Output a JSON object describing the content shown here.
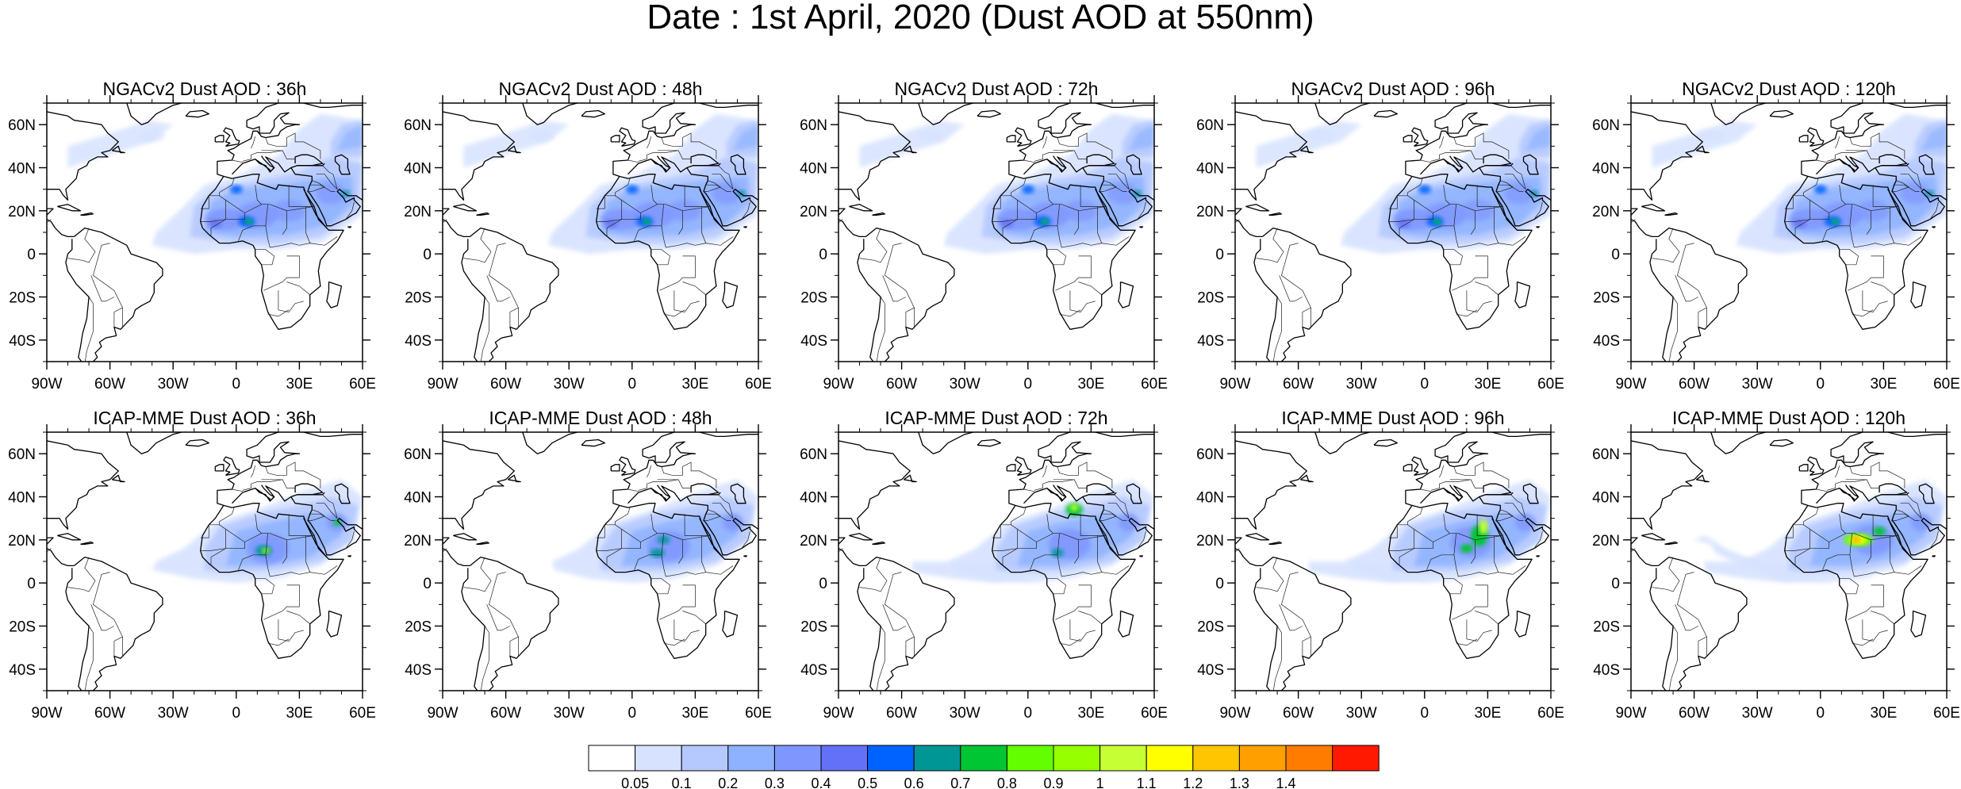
{
  "title": "Date : 1st April, 2020 (Dust AOD at 550nm)",
  "map": {
    "lon_range": [
      -90,
      60
    ],
    "lat_range": [
      -50,
      70
    ],
    "x_ticks": [
      {
        "lon": -90,
        "label": "90W"
      },
      {
        "lon": -60,
        "label": "60W"
      },
      {
        "lon": -30,
        "label": "30W"
      },
      {
        "lon": 0,
        "label": "0"
      },
      {
        "lon": 30,
        "label": "30E"
      },
      {
        "lon": 60,
        "label": "60E"
      }
    ],
    "y_ticks": [
      {
        "lat": 60,
        "label": "60N"
      },
      {
        "lat": 40,
        "label": "40N"
      },
      {
        "lat": 20,
        "label": "20N"
      },
      {
        "lat": 0,
        "label": "0"
      },
      {
        "lat": -20,
        "label": "20S"
      },
      {
        "lat": -40,
        "label": "40S"
      }
    ]
  },
  "rows": [
    {
      "model": "NGACv2",
      "panels": [
        {
          "title": "NGACv2 Dust AOD : 36h",
          "lead_hours": 36
        },
        {
          "title": "NGACv2 Dust AOD : 48h",
          "lead_hours": 48
        },
        {
          "title": "NGACv2 Dust AOD : 72h",
          "lead_hours": 72
        },
        {
          "title": "NGACv2 Dust AOD : 96h",
          "lead_hours": 96
        },
        {
          "title": "NGACv2 Dust AOD : 120h",
          "lead_hours": 120
        }
      ]
    },
    {
      "model": "ICAP-MME",
      "panels": [
        {
          "title": "ICAP-MME Dust AOD : 36h",
          "lead_hours": 36
        },
        {
          "title": "ICAP-MME Dust AOD : 48h",
          "lead_hours": 48
        },
        {
          "title": "ICAP-MME Dust AOD : 72h",
          "lead_hours": 72
        },
        {
          "title": "ICAP-MME Dust AOD : 96h",
          "lead_hours": 96
        },
        {
          "title": "ICAP-MME Dust AOD : 120h",
          "lead_hours": 120
        }
      ]
    }
  ],
  "colorbar": {
    "levels": [
      "0.05",
      "0.1",
      "0.2",
      "0.3",
      "0.4",
      "0.5",
      "0.6",
      "0.7",
      "0.8",
      "0.9",
      "1",
      "1.1",
      "1.2",
      "1.3",
      "1.4"
    ],
    "colors": [
      "#ffffff",
      "#d6e2ff",
      "#b5c9ff",
      "#8eb2ff",
      "#7f96ff",
      "#6370f8",
      "#0063ff",
      "#009696",
      "#00c633",
      "#63ff00",
      "#96ff00",
      "#c6ff33",
      "#ffff00",
      "#ffc600",
      "#ffa000",
      "#ff7c00",
      "#ff1900"
    ]
  }
}
